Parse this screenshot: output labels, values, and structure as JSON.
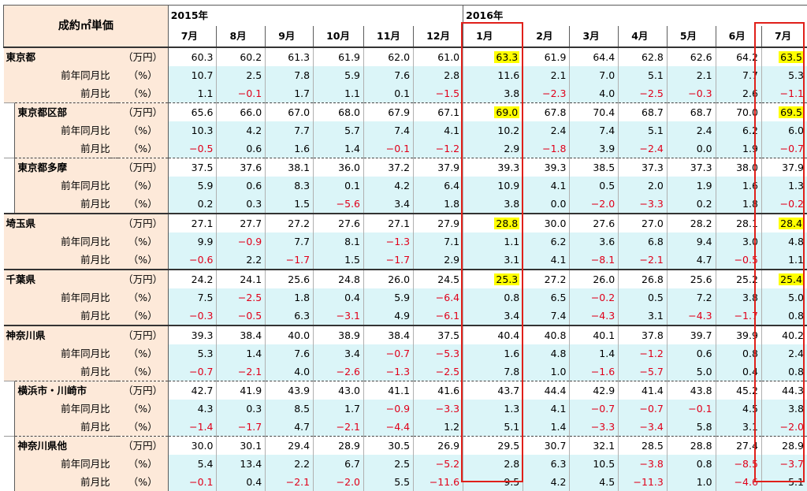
{
  "header": {
    "corner_label": "成約㎡単価",
    "year_2015": "2015年",
    "year_2016": "2016年",
    "months": [
      "7月",
      "8月",
      "9月",
      "10月",
      "11月",
      "12月",
      "1月",
      "2月",
      "3月",
      "4月",
      "5月",
      "6月",
      "7月"
    ]
  },
  "colors": {
    "negative": "#e0001a",
    "highlight": "#ffff00",
    "box": "#e0201a",
    "label_bg": "#fde9d9",
    "ratio_bg": "#dbf5f8"
  },
  "regions": [
    {
      "name": "東京都",
      "level": 0,
      "rows": [
        {
          "label": "",
          "unit": "（万円）",
          "values": [
            "60.3",
            "60.2",
            "61.3",
            "61.9",
            "62.0",
            "61.0",
            "63.3",
            "61.9",
            "64.4",
            "62.8",
            "62.6",
            "64.2",
            "63.5"
          ],
          "hl": [
            6,
            12
          ]
        },
        {
          "label": "前年同月比",
          "unit": "（%）",
          "values": [
            "10.7",
            "2.5",
            "7.8",
            "5.9",
            "7.6",
            "2.8",
            "11.6",
            "2.1",
            "7.0",
            "5.1",
            "2.1",
            "7.7",
            "5.3"
          ]
        },
        {
          "label": "前月比",
          "unit": "（%）",
          "values": [
            "1.1",
            "−0.1",
            "1.7",
            "1.1",
            "0.1",
            "−1.5",
            "3.8",
            "−2.3",
            "4.0",
            "−2.5",
            "−0.3",
            "2.6",
            "−1.1"
          ]
        }
      ]
    },
    {
      "name": "東京都区部",
      "level": 1,
      "rows": [
        {
          "label": "",
          "unit": "（万円）",
          "values": [
            "65.6",
            "66.0",
            "67.0",
            "68.0",
            "67.9",
            "67.1",
            "69.0",
            "67.8",
            "70.4",
            "68.7",
            "68.7",
            "70.0",
            "69.5"
          ],
          "hl": [
            6,
            12
          ]
        },
        {
          "label": "前年同月比",
          "unit": "（%）",
          "values": [
            "10.3",
            "4.2",
            "7.7",
            "5.7",
            "7.4",
            "4.1",
            "10.2",
            "2.4",
            "7.4",
            "5.1",
            "2.4",
            "6.2",
            "6.0"
          ]
        },
        {
          "label": "前月比",
          "unit": "（%）",
          "values": [
            "−0.5",
            "0.6",
            "1.6",
            "1.4",
            "−0.1",
            "−1.2",
            "2.9",
            "−1.8",
            "3.9",
            "−2.4",
            "0.0",
            "1.9",
            "−0.7"
          ]
        }
      ]
    },
    {
      "name": "東京都多摩",
      "level": 1,
      "rows": [
        {
          "label": "",
          "unit": "（万円）",
          "values": [
            "37.5",
            "37.6",
            "38.1",
            "36.0",
            "37.2",
            "37.9",
            "39.3",
            "39.3",
            "38.5",
            "37.3",
            "37.3",
            "38.0",
            "37.9"
          ]
        },
        {
          "label": "前年同月比",
          "unit": "（%）",
          "values": [
            "5.9",
            "0.6",
            "8.3",
            "0.1",
            "4.2",
            "6.4",
            "10.9",
            "4.1",
            "0.5",
            "2.0",
            "1.9",
            "1.6",
            "1.3"
          ]
        },
        {
          "label": "前月比",
          "unit": "（%）",
          "values": [
            "0.2",
            "0.3",
            "1.5",
            "−5.6",
            "3.4",
            "1.8",
            "3.8",
            "0.0",
            "−2.0",
            "−3.3",
            "0.2",
            "1.8",
            "−0.2"
          ]
        }
      ]
    },
    {
      "name": "埼玉県",
      "level": 0,
      "rows": [
        {
          "label": "",
          "unit": "（万円）",
          "values": [
            "27.1",
            "27.7",
            "27.2",
            "27.6",
            "27.1",
            "27.9",
            "28.8",
            "30.0",
            "27.6",
            "27.0",
            "28.2",
            "28.1",
            "28.4"
          ],
          "hl": [
            6,
            12
          ]
        },
        {
          "label": "前年同月比",
          "unit": "（%）",
          "values": [
            "9.9",
            "−0.9",
            "7.7",
            "8.1",
            "−1.3",
            "7.1",
            "1.1",
            "6.2",
            "3.6",
            "6.8",
            "9.4",
            "3.0",
            "4.8"
          ]
        },
        {
          "label": "前月比",
          "unit": "（%）",
          "values": [
            "−0.6",
            "2.2",
            "−1.7",
            "1.5",
            "−1.7",
            "2.9",
            "3.1",
            "4.1",
            "−8.1",
            "−2.1",
            "4.7",
            "−0.5",
            "1.1"
          ]
        }
      ]
    },
    {
      "name": "千葉県",
      "level": 0,
      "rows": [
        {
          "label": "",
          "unit": "（万円）",
          "values": [
            "24.2",
            "24.1",
            "25.6",
            "24.8",
            "26.0",
            "24.5",
            "25.3",
            "27.2",
            "26.0",
            "26.8",
            "25.6",
            "25.2",
            "25.4"
          ],
          "hl": [
            6,
            12
          ]
        },
        {
          "label": "前年同月比",
          "unit": "（%）",
          "values": [
            "7.5",
            "−2.5",
            "1.8",
            "0.4",
            "5.9",
            "−6.4",
            "0.8",
            "6.5",
            "−0.2",
            "0.5",
            "7.2",
            "3.8",
            "5.0"
          ]
        },
        {
          "label": "前月比",
          "unit": "（%）",
          "values": [
            "−0.3",
            "−0.5",
            "6.3",
            "−3.1",
            "4.9",
            "−6.1",
            "3.4",
            "7.4",
            "−4.3",
            "3.1",
            "−4.3",
            "−1.7",
            "0.8"
          ]
        }
      ]
    },
    {
      "name": "神奈川県",
      "level": 0,
      "rows": [
        {
          "label": "",
          "unit": "（万円）",
          "values": [
            "39.3",
            "38.4",
            "40.0",
            "38.9",
            "38.4",
            "37.5",
            "40.4",
            "40.8",
            "40.1",
            "37.8",
            "39.7",
            "39.9",
            "40.2"
          ]
        },
        {
          "label": "前年同月比",
          "unit": "（%）",
          "values": [
            "5.3",
            "1.4",
            "7.6",
            "3.4",
            "−0.7",
            "−5.3",
            "1.6",
            "4.8",
            "1.4",
            "−1.2",
            "0.6",
            "0.8",
            "2.4"
          ]
        },
        {
          "label": "前月比",
          "unit": "（%）",
          "values": [
            "−0.7",
            "−2.1",
            "4.0",
            "−2.6",
            "−1.3",
            "−2.5",
            "7.8",
            "1.0",
            "−1.6",
            "−5.7",
            "5.0",
            "0.4",
            "0.8"
          ]
        }
      ]
    },
    {
      "name": "横浜市・川崎市",
      "level": 1,
      "rows": [
        {
          "label": "",
          "unit": "（万円）",
          "values": [
            "42.7",
            "41.9",
            "43.9",
            "43.0",
            "41.1",
            "41.6",
            "43.7",
            "44.4",
            "42.9",
            "41.4",
            "43.8",
            "45.2",
            "44.3"
          ]
        },
        {
          "label": "前年同月比",
          "unit": "（%）",
          "values": [
            "4.3",
            "0.3",
            "8.5",
            "1.7",
            "−0.9",
            "−3.3",
            "1.3",
            "4.1",
            "−0.7",
            "−0.7",
            "−0.1",
            "4.5",
            "3.8"
          ]
        },
        {
          "label": "前月比",
          "unit": "（%）",
          "values": [
            "−1.4",
            "−1.7",
            "4.7",
            "−2.1",
            "−4.4",
            "1.2",
            "5.1",
            "1.4",
            "−3.3",
            "−3.4",
            "5.8",
            "3.1",
            "−2.0"
          ]
        }
      ]
    },
    {
      "name": "神奈川県他",
      "level": 1,
      "rows": [
        {
          "label": "",
          "unit": "（万円）",
          "values": [
            "30.0",
            "30.1",
            "29.4",
            "28.9",
            "30.5",
            "26.9",
            "29.5",
            "30.7",
            "32.1",
            "28.5",
            "28.8",
            "27.4",
            "28.9"
          ]
        },
        {
          "label": "前年同月比",
          "unit": "（%）",
          "values": [
            "5.4",
            "13.4",
            "2.2",
            "6.7",
            "2.5",
            "−5.2",
            "2.8",
            "6.3",
            "10.5",
            "−3.8",
            "0.8",
            "−8.5",
            "−3.7"
          ]
        },
        {
          "label": "前月比",
          "unit": "（%）",
          "values": [
            "−0.1",
            "0.4",
            "−2.1",
            "−2.0",
            "5.5",
            "−11.6",
            "9.5",
            "4.2",
            "4.5",
            "−11.3",
            "1.0",
            "−4.6",
            "5.1"
          ]
        }
      ]
    }
  ]
}
